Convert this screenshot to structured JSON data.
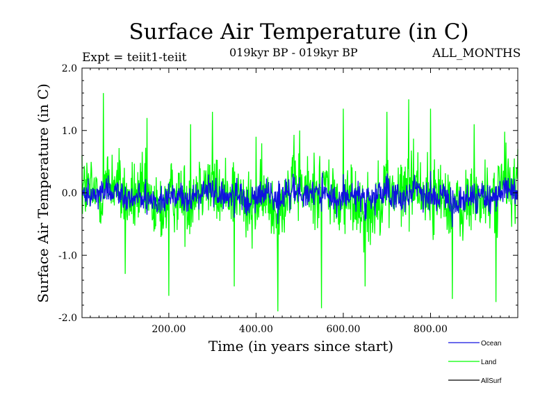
{
  "chart_data": {
    "type": "line",
    "title": "Surface Air Temperature (in C)",
    "subtitle": "019kyr BP - 019kyr BP",
    "experiment": "Expt = teiit1-teiit",
    "period": "ALL_MONTHS",
    "xlabel": "Time (in years since start)",
    "ylabel": "Surface Air Temperature (in C)",
    "xlim": [
      1,
      1000
    ],
    "ylim": [
      -2.0,
      2.0
    ],
    "x_ticks": [
      200,
      400,
      600,
      800
    ],
    "x_tick_labels": [
      "200.00",
      "400.00",
      "600.00",
      "800.00"
    ],
    "y_ticks": [
      2.0,
      1.0,
      0.0,
      -1.0,
      -2.0
    ],
    "y_tick_labels": [
      "2.0",
      "1.0",
      "0.0",
      "-1.0",
      "-2.0"
    ],
    "grid": false,
    "legend_position": "bottom-right",
    "series": [
      {
        "name": "Ocean",
        "color": "#1010e0",
        "mean": -0.05,
        "range": [
          -0.75,
          0.45
        ],
        "x": [
          1,
          50,
          100,
          150,
          200,
          250,
          300,
          350,
          400,
          450,
          500,
          550,
          600,
          650,
          700,
          750,
          800,
          850,
          900,
          950,
          1000
        ],
        "values": [
          0.05,
          -0.1,
          0.1,
          -0.35,
          0.15,
          -0.25,
          0.2,
          -0.4,
          0.1,
          -0.5,
          0.25,
          -0.3,
          0.3,
          -0.45,
          0.2,
          -0.2,
          0.35,
          -0.55,
          0.15,
          -0.3,
          -0.05
        ]
      },
      {
        "name": "Land",
        "color": "#00ff00",
        "mean": -0.05,
        "range": [
          -1.9,
          1.6
        ],
        "x": [
          1,
          50,
          100,
          150,
          200,
          250,
          300,
          350,
          400,
          450,
          500,
          550,
          600,
          650,
          700,
          750,
          800,
          850,
          900,
          950,
          1000
        ],
        "values": [
          0.6,
          1.6,
          -1.3,
          1.2,
          -1.65,
          1.1,
          1.3,
          -1.5,
          0.9,
          -1.9,
          1.0,
          -1.85,
          1.35,
          -1.5,
          1.3,
          1.5,
          1.35,
          -1.7,
          1.1,
          -1.75,
          0.7
        ]
      },
      {
        "name": "AllSurf",
        "color": "#000000",
        "values": []
      }
    ]
  }
}
